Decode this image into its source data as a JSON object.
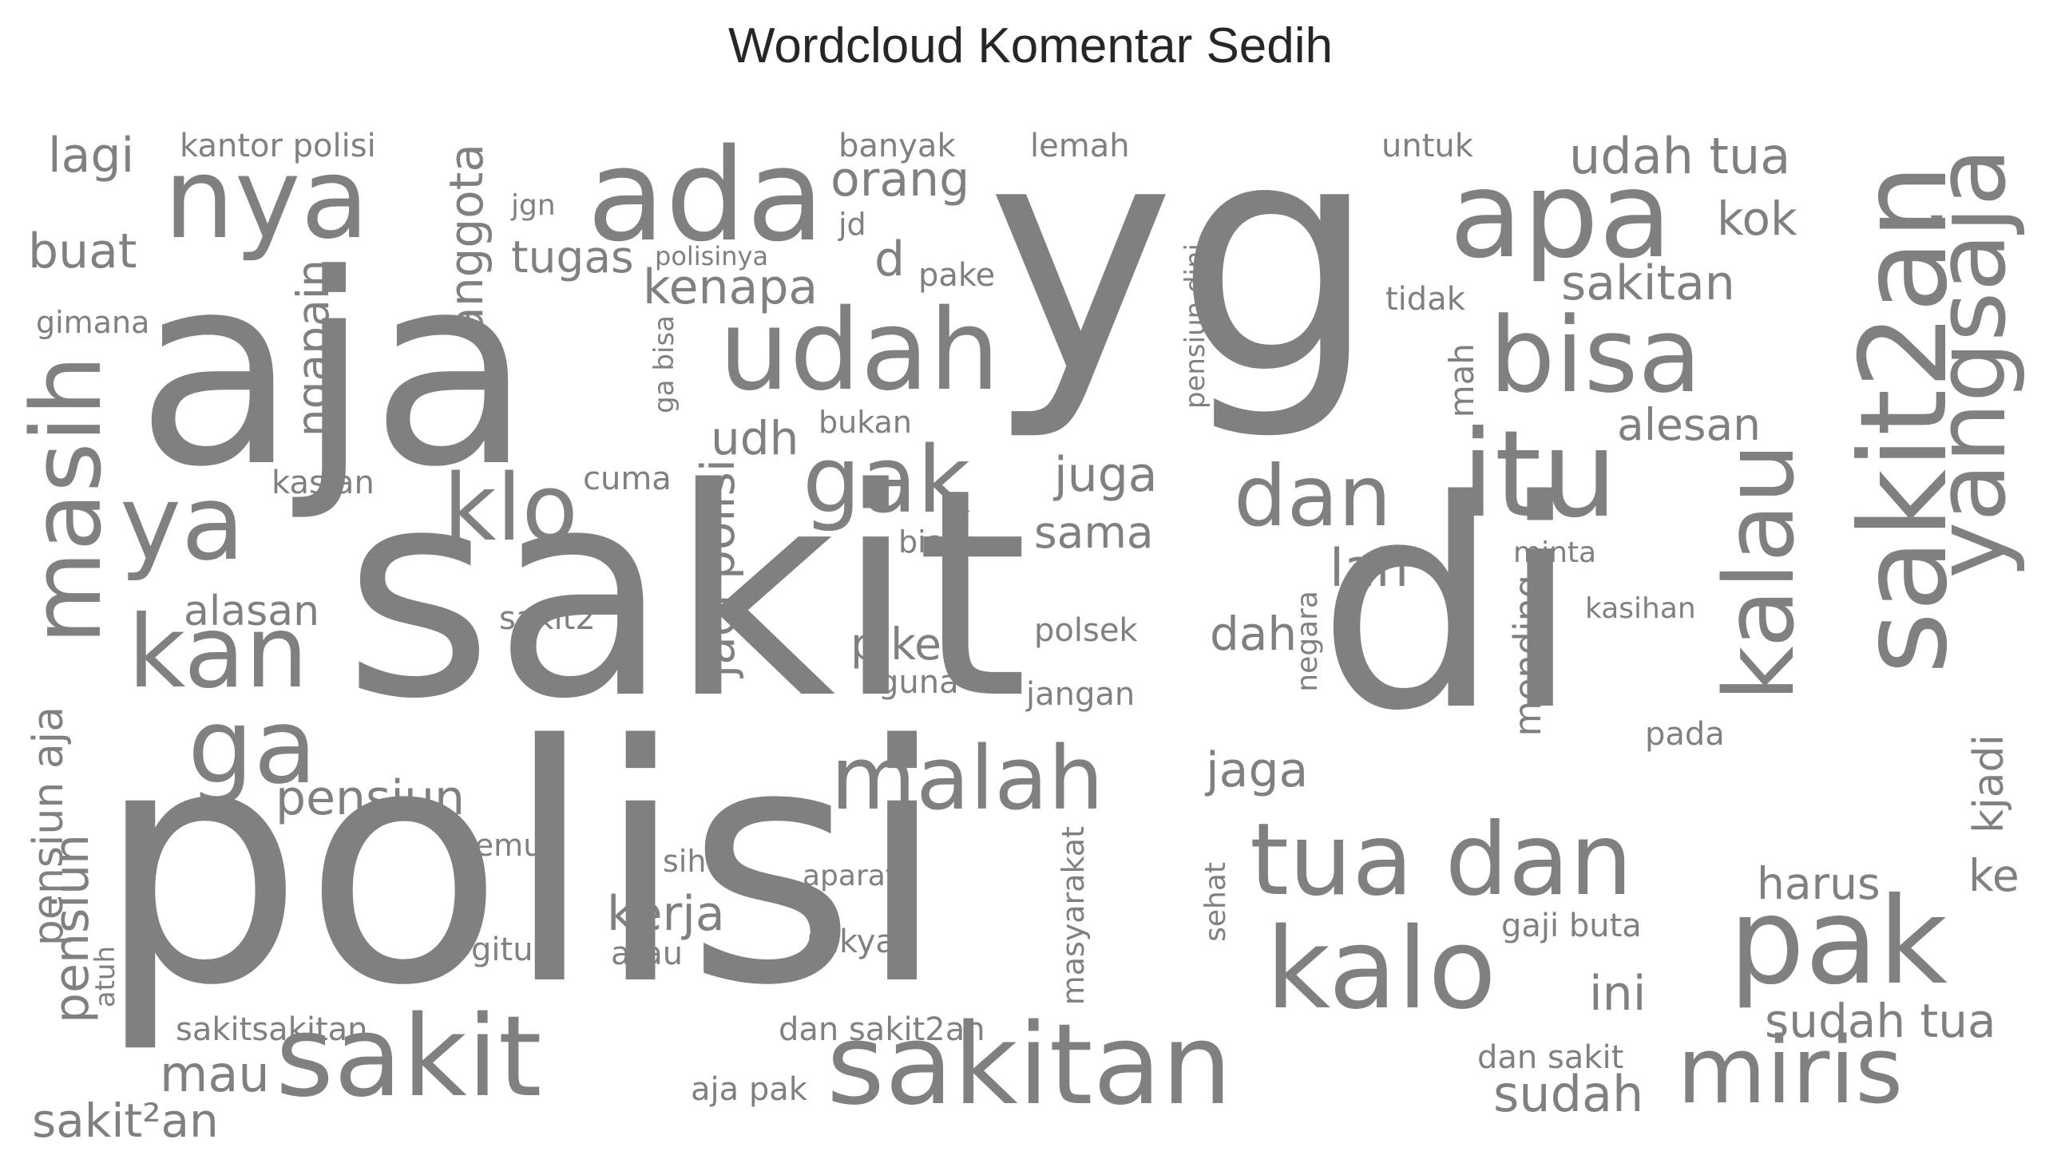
{
  "title": "Wordcloud Komentar Sedih",
  "color": "#808080",
  "words": [
    {
      "text": "yg"
    },
    {
      "text": "sakit"
    },
    {
      "text": "polisi"
    },
    {
      "text": "aja"
    },
    {
      "text": "di"
    },
    {
      "text": "ada"
    },
    {
      "text": "nya"
    },
    {
      "text": "apa"
    },
    {
      "text": "udah"
    },
    {
      "text": "bisa"
    },
    {
      "text": "itu"
    },
    {
      "text": "sakit2an"
    },
    {
      "text": "yangsaja"
    },
    {
      "text": "ya"
    },
    {
      "text": "masih"
    },
    {
      "text": "klo"
    },
    {
      "text": "kan"
    },
    {
      "text": "ga"
    },
    {
      "text": "gak"
    },
    {
      "text": "dan"
    },
    {
      "text": "kalau"
    },
    {
      "text": "malah"
    },
    {
      "text": "tua dan"
    },
    {
      "text": "kalo"
    },
    {
      "text": "pak"
    },
    {
      "text": "sakit"
    },
    {
      "text": "sakitan"
    },
    {
      "text": "miris"
    },
    {
      "text": "udah tua"
    },
    {
      "text": "orang"
    },
    {
      "text": "kenapa"
    },
    {
      "text": "anggota"
    },
    {
      "text": "tugas"
    },
    {
      "text": "buat"
    },
    {
      "text": "lagi"
    },
    {
      "text": "kantor polisi"
    },
    {
      "text": "banyak"
    },
    {
      "text": "lemah"
    },
    {
      "text": "untuk"
    },
    {
      "text": "jgn"
    },
    {
      "text": "jd"
    },
    {
      "text": "d"
    },
    {
      "text": "polisinya"
    },
    {
      "text": "pake"
    },
    {
      "text": "kok"
    },
    {
      "text": "sakitan"
    },
    {
      "text": "tidak"
    },
    {
      "text": "pensiun dini"
    },
    {
      "text": "gimana"
    },
    {
      "text": "ngapain"
    },
    {
      "text": "ga bisa"
    },
    {
      "text": "udh"
    },
    {
      "text": "bukan"
    },
    {
      "text": "mah"
    },
    {
      "text": "alesan"
    },
    {
      "text": "kasian"
    },
    {
      "text": "cuma"
    },
    {
      "text": "jadi polisi"
    },
    {
      "text": "juga"
    },
    {
      "text": "biar"
    },
    {
      "text": "sama"
    },
    {
      "text": "lah"
    },
    {
      "text": "minta"
    },
    {
      "text": "mending"
    },
    {
      "text": "alasan"
    },
    {
      "text": "sakit2"
    },
    {
      "text": "piket"
    },
    {
      "text": "polsek"
    },
    {
      "text": "dah"
    },
    {
      "text": "negara"
    },
    {
      "text": "kasihan"
    },
    {
      "text": "guna"
    },
    {
      "text": "jangan"
    },
    {
      "text": "pensiun aja"
    },
    {
      "text": "pada"
    },
    {
      "text": "pensiun"
    },
    {
      "text": "jaga"
    },
    {
      "text": "kjadi"
    },
    {
      "text": "semua"
    },
    {
      "text": "sih"
    },
    {
      "text": "aparat"
    },
    {
      "text": "masyarakat"
    },
    {
      "text": "harus"
    },
    {
      "text": "ke"
    },
    {
      "text": "kerja"
    },
    {
      "text": "pensiun"
    },
    {
      "text": "gaji buta"
    },
    {
      "text": "sehat"
    },
    {
      "text": "gitu"
    },
    {
      "text": "atau"
    },
    {
      "text": "rakyat"
    },
    {
      "text": "atuh"
    },
    {
      "text": "ini"
    },
    {
      "text": "sakitsakitan"
    },
    {
      "text": "dan sakit2an"
    },
    {
      "text": "sudah tua"
    },
    {
      "text": "mau"
    },
    {
      "text": "dan sakit"
    },
    {
      "text": "aja pak"
    },
    {
      "text": "sudah"
    },
    {
      "text": "sakit²an"
    }
  ]
}
